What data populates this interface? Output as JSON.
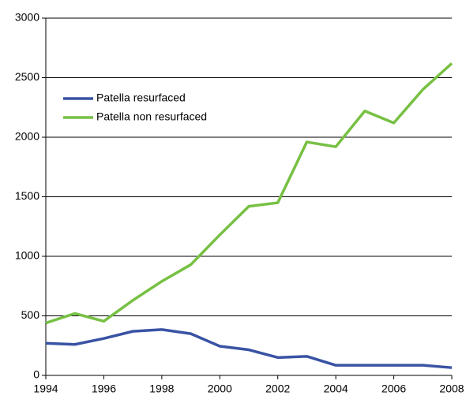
{
  "chart_data": {
    "type": "line",
    "x": [
      1994,
      1995,
      1996,
      1997,
      1998,
      1999,
      2000,
      2001,
      2002,
      2003,
      2004,
      2005,
      2006,
      2007,
      2008
    ],
    "series": [
      {
        "name": "Patella resurfaced",
        "color": "#3953a4",
        "values": [
          270,
          260,
          310,
          370,
          385,
          350,
          245,
          215,
          150,
          160,
          85,
          85,
          85,
          85,
          65
        ]
      },
      {
        "name": "Patella non resurfaced",
        "color": "#77c043",
        "values": [
          440,
          520,
          455,
          630,
          790,
          930,
          1180,
          1420,
          1450,
          1960,
          1920,
          2220,
          2120,
          2400,
          2620
        ]
      }
    ],
    "xlim": [
      1994,
      2008
    ],
    "xticks": [
      1994,
      1996,
      1998,
      2000,
      2002,
      2004,
      2006,
      2008
    ],
    "ylim": [
      0,
      3000
    ],
    "yticks": [
      0,
      500,
      1000,
      1500,
      2000,
      2500,
      3000
    ],
    "grid": true,
    "legend": "upper left"
  }
}
